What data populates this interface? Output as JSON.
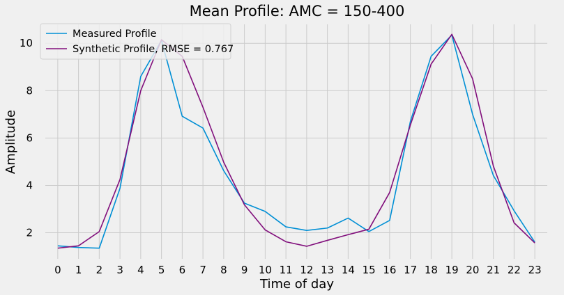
{
  "chart_data": {
    "type": "line",
    "title": "Mean Profile: AMC = 150-400",
    "xlabel": "Time of day",
    "ylabel": "Amplitude",
    "x": [
      0,
      1,
      2,
      3,
      4,
      5,
      6,
      7,
      8,
      9,
      10,
      11,
      12,
      13,
      14,
      15,
      16,
      17,
      18,
      19,
      20,
      21,
      22,
      23
    ],
    "x_tick_labels": [
      "0",
      "1",
      "2",
      "3",
      "4",
      "5",
      "6",
      "7",
      "8",
      "9",
      "10",
      "11",
      "12",
      "13",
      "14",
      "15",
      "16",
      "17",
      "18",
      "19",
      "20",
      "21",
      "22",
      "23"
    ],
    "y_ticks": [
      2,
      4,
      6,
      8,
      10
    ],
    "y_tick_labels": [
      "2",
      "4",
      "6",
      "8",
      "10"
    ],
    "xlim": [
      -0.6,
      23.6
    ],
    "ylim": [
      0.9,
      10.8
    ],
    "grid": true,
    "legend_position": "upper-left",
    "series": [
      {
        "name": "Measured Profile",
        "color": "#008fd5",
        "values": [
          1.45,
          1.38,
          1.35,
          3.88,
          8.6,
          10.12,
          6.92,
          6.42,
          4.62,
          3.25,
          2.9,
          2.25,
          2.1,
          2.2,
          2.62,
          2.05,
          2.52,
          6.7,
          9.45,
          10.35,
          7.0,
          4.42,
          2.93,
          1.6
        ]
      },
      {
        "name": "Synthetic Profile, RMSE = 0.767",
        "color": "#810f7c",
        "values": [
          1.35,
          1.45,
          2.05,
          4.25,
          8.0,
          10.15,
          9.45,
          7.3,
          4.98,
          3.18,
          2.12,
          1.62,
          1.43,
          1.68,
          1.92,
          2.15,
          3.7,
          6.55,
          9.12,
          10.38,
          8.5,
          4.82,
          2.42,
          1.57
        ]
      }
    ]
  }
}
